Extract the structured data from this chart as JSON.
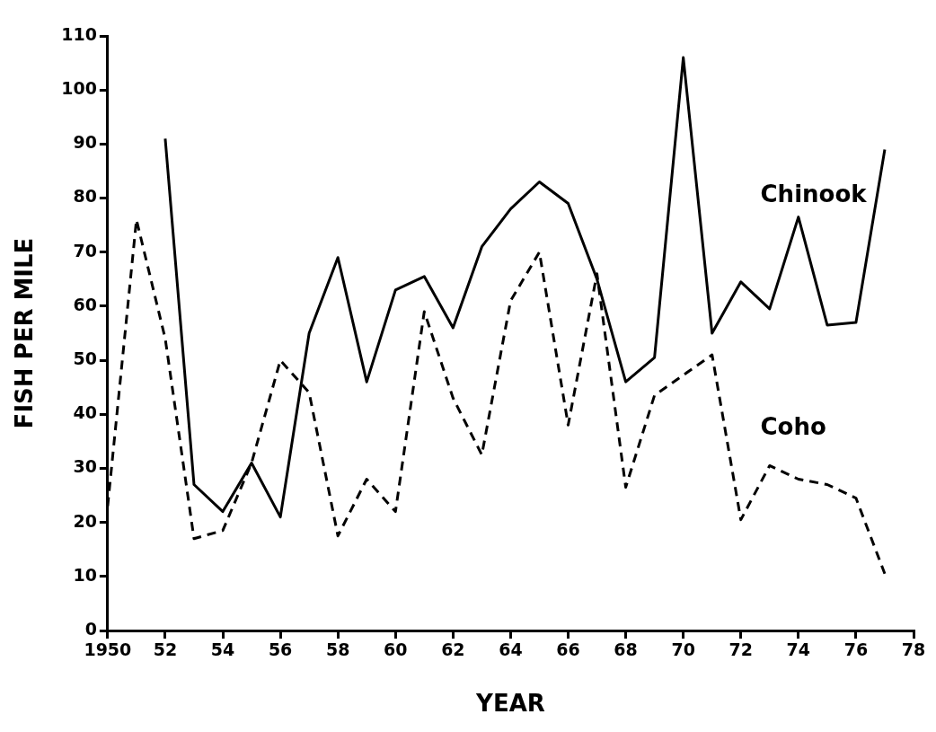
{
  "chart_data": {
    "type": "line",
    "xlabel": "YEAR",
    "ylabel": "FISH PER MILE",
    "xlim": [
      1950,
      1978
    ],
    "ylim": [
      0,
      110
    ],
    "xticks": [
      1950,
      {
        "value": 1952,
        "label": "52"
      },
      {
        "value": 1954,
        "label": "54"
      },
      {
        "value": 1956,
        "label": "56"
      },
      {
        "value": 1958,
        "label": "58"
      },
      {
        "value": 1960,
        "label": "60"
      },
      {
        "value": 1962,
        "label": "62"
      },
      {
        "value": 1964,
        "label": "64"
      },
      {
        "value": 1966,
        "label": "66"
      },
      {
        "value": 1968,
        "label": "68"
      },
      {
        "value": 1970,
        "label": "70"
      },
      {
        "value": 1972,
        "label": "72"
      },
      {
        "value": 1974,
        "label": "74"
      },
      {
        "value": 1976,
        "label": "76"
      },
      {
        "value": 1978,
        "label": "78"
      }
    ],
    "yticks": [
      0,
      10,
      20,
      30,
      40,
      50,
      60,
      70,
      80,
      90,
      100,
      110
    ],
    "grid": false,
    "legend": false,
    "marker": "none",
    "series": [
      {
        "name": "Chinook",
        "color": "#000000",
        "line_style": "solid",
        "x": [
          1952,
          1953,
          1954,
          1955,
          1956,
          1957,
          1958,
          1959,
          1960,
          1961,
          1962,
          1963,
          1964,
          1965,
          1966,
          1967,
          1968,
          1969,
          1970,
          1971,
          1972,
          1973,
          1974,
          1975,
          1976,
          1977
        ],
        "values": [
          91,
          27,
          22,
          31,
          21,
          55,
          69,
          46,
          63,
          65.5,
          56,
          71,
          78,
          83,
          79,
          65,
          46,
          50.5,
          106,
          55,
          64.5,
          59.5,
          76.5,
          56.5,
          57,
          89
        ]
      },
      {
        "name": "Coho",
        "color": "#000000",
        "line_style": "dashed",
        "x": [
          1950,
          1951,
          1952,
          1953,
          1954,
          1955,
          1956,
          1957,
          1958,
          1959,
          1960,
          1961,
          1962,
          1963,
          1964,
          1965,
          1966,
          1967,
          1968,
          1969,
          1971,
          1972,
          1973,
          1974,
          1975,
          1976,
          1977
        ],
        "values": [
          23,
          76,
          54,
          17,
          18.5,
          31,
          50,
          44,
          17.5,
          28,
          22,
          59,
          43,
          32.5,
          61,
          70,
          38,
          66,
          26.5,
          43.5,
          51,
          20.5,
          30.5,
          28,
          27,
          24.5,
          10.5
        ]
      }
    ]
  }
}
